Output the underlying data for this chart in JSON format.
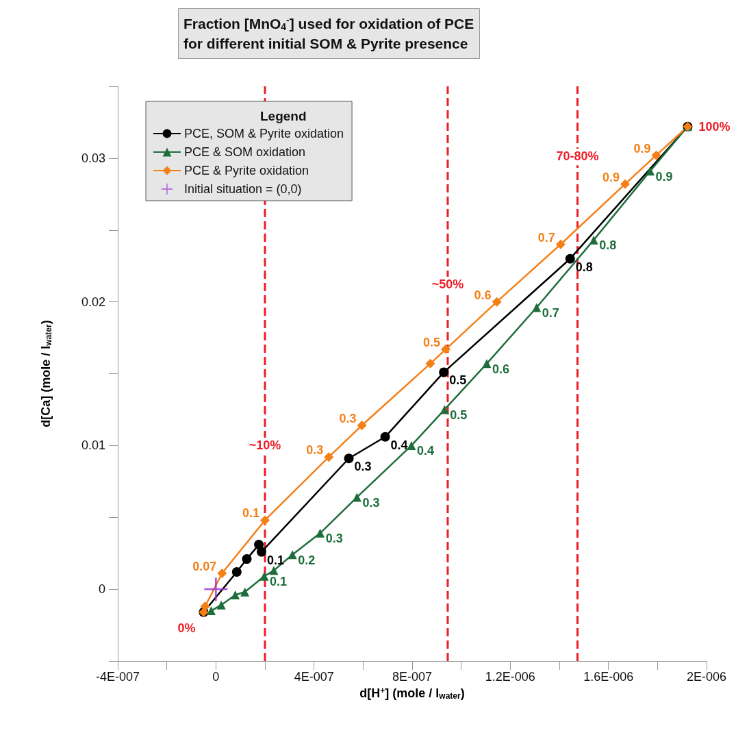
{
  "chart_data": {
    "type": "line",
    "title": "Fraction [MnO$_{4}$$^{-}$] used for oxidation of PCE\nfor different initial SOM & Pyrite presence",
    "xlabel": "d[H$^{+}$] (mole / l$_{water}$)",
    "ylabel": "d[Ca] (mole / l$_{water}$)",
    "legend_title": "Legend",
    "legend": "top left",
    "grid": false,
    "xlim": [
      -4e-07,
      2e-06
    ],
    "xticks": [
      {
        "value": -4e-07,
        "label": "-4E-007"
      },
      {
        "value": -2e-07,
        "label": null
      },
      0,
      {
        "value": 2e-07,
        "label": null
      },
      {
        "value": 4e-07,
        "label": "4E-007"
      },
      {
        "value": 6e-07,
        "label": null
      },
      {
        "value": 8e-07,
        "label": "8E-007"
      },
      {
        "value": 1e-06,
        "label": null
      },
      {
        "value": 1.2e-06,
        "label": "1.2E-006"
      },
      {
        "value": 1.4e-06,
        "label": null
      },
      {
        "value": 1.6e-06,
        "label": "1.6E-006"
      },
      {
        "value": 1.8e-06,
        "label": null
      },
      {
        "value": 2e-06,
        "label": "2E-006"
      }
    ],
    "ylim": [
      -0.005,
      0.035
    ],
    "yticks": [
      {
        "value": -0.005,
        "label": null
      },
      0,
      {
        "value": 0.005,
        "label": null
      },
      0.01,
      {
        "value": 0.015,
        "label": null
      },
      0.02,
      {
        "value": 0.025,
        "label": null
      },
      0.03,
      {
        "value": 0.035,
        "label": null
      }
    ],
    "series": [
      {
        "name": "PCE, SOM & Pyrite oxidation",
        "color": "#000000",
        "marker": "circle",
        "x": [
          -5e-08,
          8.5e-08,
          1.26e-07,
          1.75e-07,
          1.86e-07,
          5.42e-07,
          6.9e-07,
          9.29e-07,
          1.444e-06,
          1.923e-06
        ],
        "values": [
          -0.0016,
          0.0012,
          0.0021,
          0.0031,
          0.0026,
          0.0091,
          0.0106,
          0.0151,
          0.023,
          0.0322
        ]
      },
      {
        "name": "PCE & SOM oxidation",
        "color": "#1e6e3c",
        "marker": "triangle",
        "x": [
          -1.9e-08,
          2.2e-08,
          7.9e-08,
          1.18e-07,
          1.97e-07,
          2.36e-07,
          3.12e-07,
          4.25e-07,
          5.75e-07,
          7.97e-07,
          9.32e-07,
          1.104e-06,
          1.307e-06,
          1.54e-06,
          1.77e-06,
          1.923e-06
        ],
        "values": [
          -0.0015,
          -0.0011,
          -0.0004,
          -0.0002,
          0.0009,
          0.0013,
          0.0024,
          0.0039,
          0.0064,
          0.01,
          0.0125,
          0.0157,
          0.0196,
          0.0243,
          0.0291,
          0.0322
        ]
      },
      {
        "name": "PCE & Pyrite oxidation",
        "color": "#f57f17",
        "marker": "diamond",
        "x": [
          -5e-08,
          -4.4e-08,
          2.5e-08,
          2e-07,
          4.6e-07,
          5.95e-07,
          8.74e-07,
          9.37e-07,
          1.145e-06,
          1.405e-06,
          1.668e-06,
          1.795e-06,
          1.923e-06
        ],
        "values": [
          -0.0016,
          -0.0012,
          0.0011,
          0.0048,
          0.0092,
          0.0114,
          0.0157,
          0.0167,
          0.02,
          0.024,
          0.0282,
          0.0302,
          0.0322
        ]
      },
      {
        "name": "Initial situation = (0,0)",
        "type": "scatter",
        "color": "#9b30d0",
        "marker": "cross",
        "x": [
          0
        ],
        "values": [
          0
        ]
      }
    ],
    "ref_lines": [
      {
        "axis": "x",
        "value": 2e-07,
        "color": "#ee1c25",
        "line_style": "dashed"
      },
      {
        "axis": "x",
        "value": 9.45e-07,
        "color": "#ee1c25",
        "line_style": "dashed"
      },
      {
        "axis": "x",
        "value": 1.474e-06,
        "color": "#ee1c25",
        "line_style": "dashed"
      }
    ],
    "annotations": [
      {
        "text": "~10%",
        "x": 2e-07,
        "y": 0.0094
      },
      {
        "text": "~50%",
        "x": 9.45e-07,
        "y": 0.0206
      },
      {
        "text": "70-80%",
        "x": 1.474e-06,
        "y": 0.0295
      },
      {
        "text": "0%",
        "x": -5e-08,
        "y": -0.0016
      },
      {
        "text": "100%",
        "x": 1.923e-06,
        "y": 0.0322
      },
      {
        "text": "0.1",
        "x": 1.86e-07,
        "y": 0.0026
      },
      {
        "text": "0.3",
        "x": 5.42e-07,
        "y": 0.0091
      },
      {
        "text": "0.4",
        "x": 6.9e-07,
        "y": 0.0106
      },
      {
        "text": "0.5",
        "x": 9.29e-07,
        "y": 0.0151
      },
      {
        "text": "0.8",
        "x": 1.444e-06,
        "y": 0.023
      },
      {
        "text": "0.1",
        "x": 1.97e-07,
        "y": 0.0009
      },
      {
        "text": "0.2",
        "x": 3.12e-07,
        "y": 0.0024
      },
      {
        "text": "0.3",
        "x": 4.25e-07,
        "y": 0.0039
      },
      {
        "text": "0.3",
        "x": 5.75e-07,
        "y": 0.0064
      },
      {
        "text": "0.4",
        "x": 7.97e-07,
        "y": 0.01
      },
      {
        "text": "0.5",
        "x": 9.32e-07,
        "y": 0.0125
      },
      {
        "text": "0.6",
        "x": 1.104e-06,
        "y": 0.0157
      },
      {
        "text": "0.7",
        "x": 1.307e-06,
        "y": 0.0196
      },
      {
        "text": "0.8",
        "x": 1.54e-06,
        "y": 0.0243
      },
      {
        "text": "0.9",
        "x": 1.77e-06,
        "y": 0.0291
      },
      {
        "text": "0.07",
        "x": 2.5e-08,
        "y": 0.0011
      },
      {
        "text": "0.1",
        "x": 2e-07,
        "y": 0.0048
      },
      {
        "text": "0.3",
        "x": 4.6e-07,
        "y": 0.0092
      },
      {
        "text": "0.3",
        "x": 5.95e-07,
        "y": 0.0114
      },
      {
        "text": "0.5",
        "x": 9.37e-07,
        "y": 0.0167
      },
      {
        "text": "0.6",
        "x": 1.145e-06,
        "y": 0.02
      },
      {
        "text": "0.7",
        "x": 1.405e-06,
        "y": 0.024
      },
      {
        "text": "0.9",
        "x": 1.668e-06,
        "y": 0.0282
      },
      {
        "text": "0.9",
        "x": 1.795e-06,
        "y": 0.0302
      }
    ]
  }
}
